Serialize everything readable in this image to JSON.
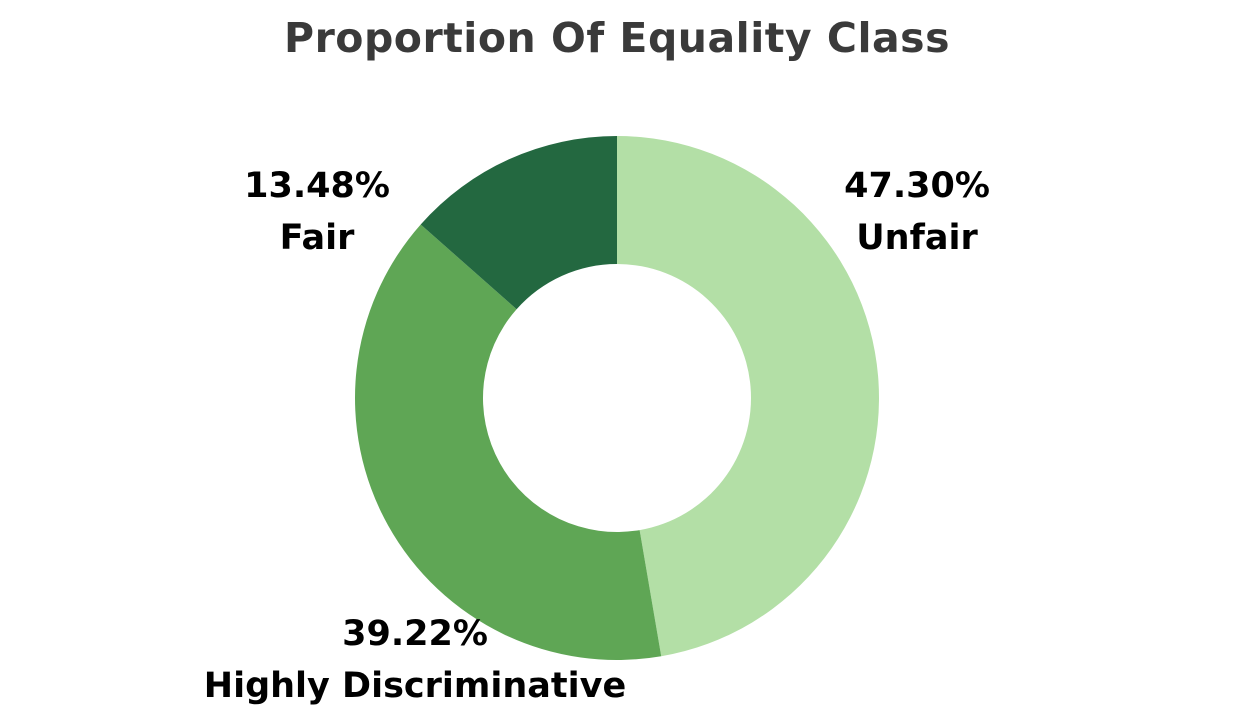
{
  "chart_data": {
    "type": "pie",
    "variant": "donut",
    "title": "Proportion Of Equality Class",
    "slices": [
      {
        "label": "Unfair",
        "value": 47.3,
        "value_label": "47.30%",
        "color": "#b3dfa6"
      },
      {
        "label": "Highly Discriminative",
        "value": 39.22,
        "value_label": "39.22%",
        "color": "#5fa655"
      },
      {
        "label": "Fair",
        "value": 13.48,
        "value_label": "13.48%",
        "color": "#236840"
      }
    ]
  }
}
